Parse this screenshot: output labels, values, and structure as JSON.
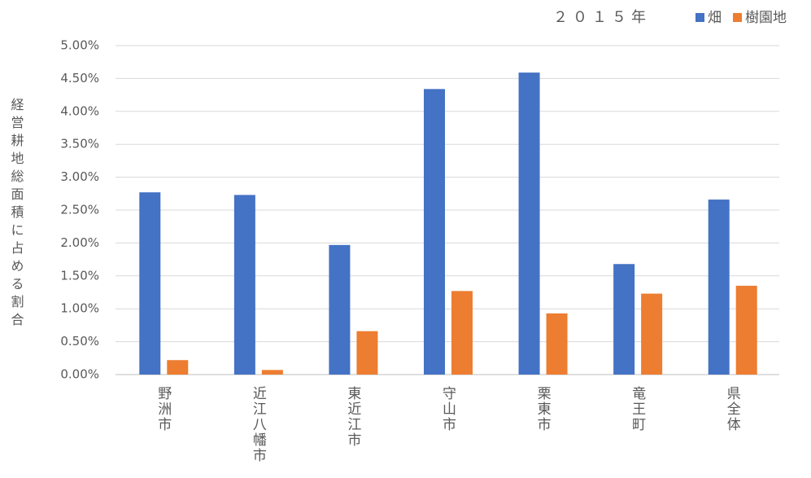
{
  "chart_data": {
    "type": "bar",
    "title": "２０１５年",
    "y_label": "経営耕地総面積に占める割合",
    "categories": [
      "野洲市",
      "近江八幡市",
      "東近江市",
      "守山市",
      "栗東市",
      "竜王町",
      "県全体"
    ],
    "series": [
      {
        "name": "畑",
        "color": "#4472c4",
        "values": [
          2.77,
          2.73,
          1.97,
          4.34,
          4.59,
          1.68,
          2.66
        ]
      },
      {
        "name": "樹園地",
        "color": "#ed7d31",
        "values": [
          0.22,
          0.07,
          0.66,
          1.27,
          0.93,
          1.23,
          1.35
        ]
      }
    ],
    "ylim": [
      0,
      5
    ],
    "yticks": [
      {
        "value": 0,
        "label": "0.00%"
      },
      {
        "value": 0.5,
        "label": "0.50%"
      },
      {
        "value": 1,
        "label": "1.00%"
      },
      {
        "value": 1.5,
        "label": "1.50%"
      },
      {
        "value": 2,
        "label": "2.00%"
      },
      {
        "value": 2.5,
        "label": "2.50%"
      },
      {
        "value": 3,
        "label": "3.00%"
      },
      {
        "value": 3.5,
        "label": "3.50%"
      },
      {
        "value": 4,
        "label": "4.00%"
      },
      {
        "value": 4.5,
        "label": "4.50%"
      },
      {
        "value": 5,
        "label": "5.00%"
      }
    ],
    "grid": true,
    "legend": "top-right"
  }
}
